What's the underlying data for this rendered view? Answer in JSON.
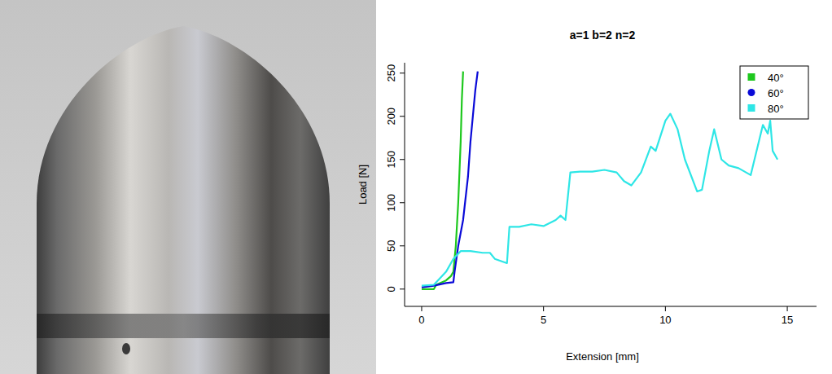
{
  "chart_data": {
    "type": "line",
    "title": "a=1 b=2 n=2",
    "x_label": "Extension [mm]",
    "y_label": "Load [N]",
    "xlim": [
      -0.7,
      16.2
    ],
    "ylim": [
      -20,
      262
    ],
    "xticks": [
      0,
      5,
      10,
      15
    ],
    "yticks": [
      0,
      50,
      100,
      150,
      200,
      250
    ],
    "legend": "topright",
    "series": [
      {
        "name": "40°",
        "color": "#1ec81e",
        "marker": "square",
        "x": [
          0,
          0.5,
          0.6,
          1.0,
          1.2,
          1.3,
          1.4,
          1.5,
          1.6,
          1.65,
          1.7
        ],
        "values": [
          0,
          0,
          5,
          10,
          15,
          20,
          50,
          100,
          170,
          220,
          252
        ]
      },
      {
        "name": "60°",
        "color": "#0a0ad8",
        "marker": "circle",
        "x": [
          0,
          0.5,
          1.0,
          1.3,
          1.35,
          1.5,
          1.7,
          1.9,
          2.0,
          2.1,
          2.2,
          2.3
        ],
        "values": [
          2,
          4,
          7,
          8,
          20,
          50,
          80,
          130,
          170,
          200,
          230,
          252
        ]
      },
      {
        "name": "80°",
        "color": "#2ee6e6",
        "marker": "square",
        "x": [
          0,
          0.5,
          1.0,
          1.3,
          1.6,
          2.0,
          2.5,
          2.8,
          3.0,
          3.5,
          3.6,
          4.0,
          4.5,
          5.0,
          5.5,
          5.7,
          5.9,
          6.1,
          6.5,
          7.0,
          7.5,
          8.0,
          8.3,
          8.6,
          9.0,
          9.4,
          9.6,
          10.0,
          10.2,
          10.5,
          10.8,
          11.3,
          11.5,
          11.8,
          12.0,
          12.3,
          12.6,
          13.0,
          13.5,
          14.0,
          14.2,
          14.3,
          14.4,
          14.6
        ],
        "values": [
          4,
          5,
          20,
          35,
          44,
          44,
          42,
          42,
          35,
          30,
          72,
          72,
          75,
          73,
          80,
          85,
          80,
          135,
          136,
          136,
          138,
          135,
          125,
          120,
          135,
          165,
          160,
          195,
          203,
          185,
          150,
          113,
          115,
          160,
          185,
          150,
          143,
          140,
          132,
          190,
          180,
          195,
          160,
          150
        ]
      }
    ]
  }
}
